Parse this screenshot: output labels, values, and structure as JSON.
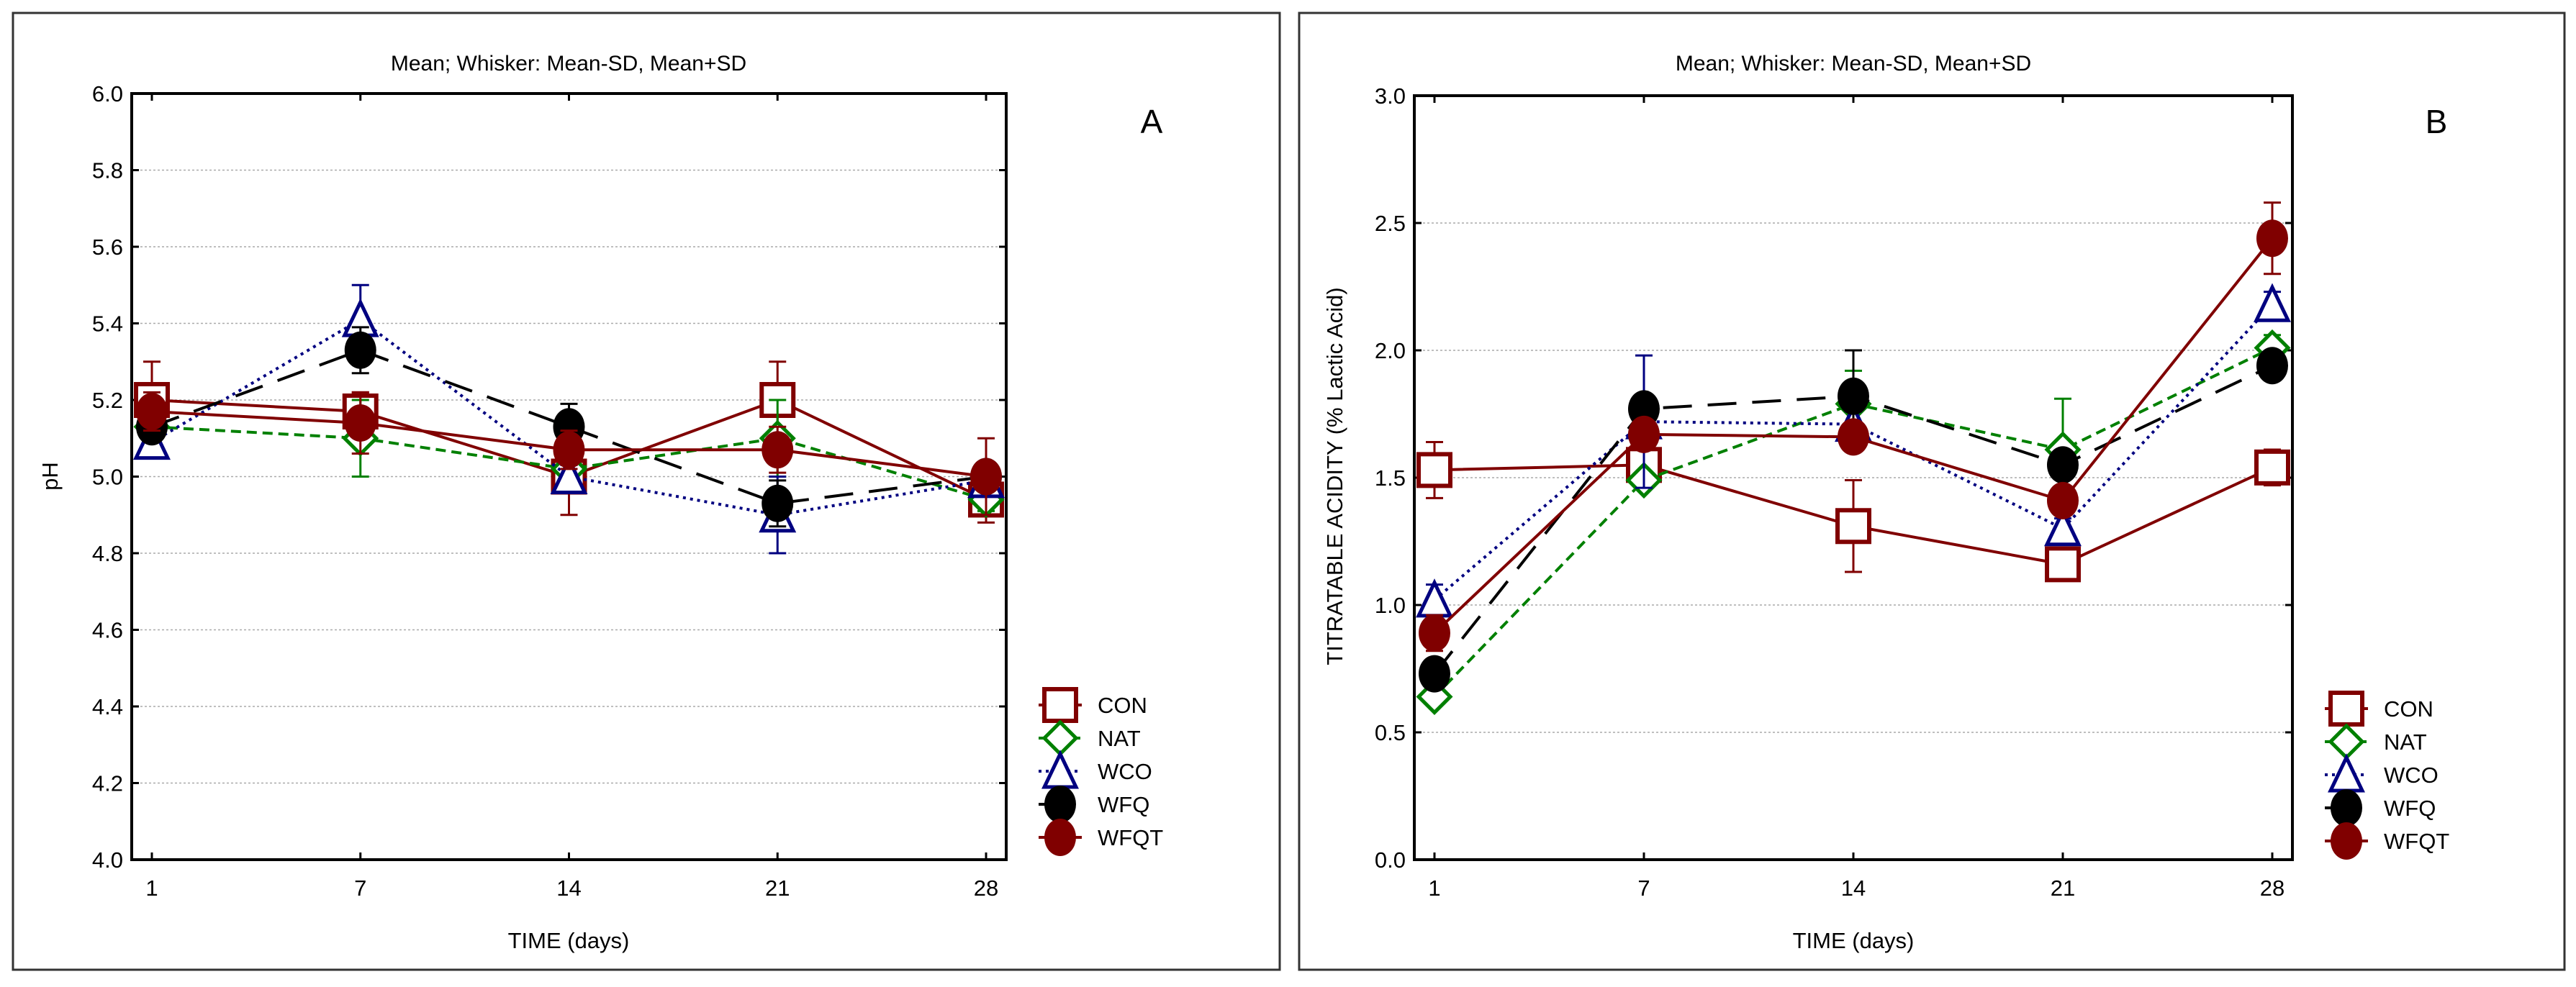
{
  "chart_data": [
    {
      "type": "line",
      "panel_label": "A",
      "title": "Mean;  Whisker: Mean-SD, Mean+SD",
      "xlabel": "TIME (days)",
      "ylabel": "pH",
      "categories": [
        "1",
        "7",
        "14",
        "21",
        "28"
      ],
      "ylim": [
        4.0,
        6.0
      ],
      "yticks": [
        "4.0",
        "4.2",
        "4.4",
        "4.6",
        "4.8",
        "5.0",
        "5.2",
        "5.4",
        "5.6",
        "5.8",
        "6.0"
      ],
      "grid": true,
      "legend_position": "bottom-right",
      "series": [
        {
          "name": "CON",
          "values": [
            5.2,
            5.17,
            5.0,
            5.2,
            4.94
          ],
          "sd": [
            0.1,
            0.05,
            0.1,
            0.1,
            0.06
          ],
          "color": "#800000",
          "marker": "square",
          "dash": "solid"
        },
        {
          "name": "NAT",
          "values": [
            5.13,
            5.1,
            5.02,
            5.1,
            4.94
          ],
          "sd": [
            0.03,
            0.1,
            0.03,
            0.1,
            0.03
          ],
          "color": "#008000",
          "marker": "diamond",
          "dash": "dashed"
        },
        {
          "name": "WCO",
          "values": [
            5.09,
            5.41,
            5.0,
            4.9,
            4.99
          ],
          "sd": [
            0.03,
            0.09,
            0.03,
            0.1,
            0.02
          ],
          "color": "#000080",
          "marker": "triangle",
          "dash": "dotted"
        },
        {
          "name": "WFQ",
          "values": [
            5.13,
            5.33,
            5.13,
            4.93,
            5.0
          ],
          "sd": [
            0.03,
            0.06,
            0.06,
            0.06,
            0.02
          ],
          "color": "#000000",
          "marker": "circle",
          "dash": "longdash"
        },
        {
          "name": "WFQT",
          "values": [
            5.17,
            5.14,
            5.07,
            5.07,
            5.0
          ],
          "sd": [
            0.05,
            0.08,
            0.05,
            0.06,
            0.1
          ],
          "color": "#800000",
          "marker": "filled-circle",
          "dash": "solid"
        }
      ]
    },
    {
      "type": "line",
      "panel_label": "B",
      "title": "Mean;  Whisker: Mean-SD, Mean+SD",
      "xlabel": "TIME (days)",
      "ylabel": "TITRATABLE ACIDITY (% Lactic Acid)",
      "categories": [
        "1",
        "7",
        "14",
        "21",
        "28"
      ],
      "ylim": [
        0.0,
        3.0
      ],
      "yticks": [
        "0.0",
        "0.5",
        "1.0",
        "1.5",
        "2.0",
        "2.5",
        "3.0"
      ],
      "grid": true,
      "legend_position": "bottom-right",
      "series": [
        {
          "name": "CON",
          "values": [
            1.53,
            1.55,
            1.31,
            1.16,
            1.54
          ],
          "sd": [
            0.11,
            0.03,
            0.18,
            0.02,
            0.07
          ],
          "color": "#800000",
          "marker": "square",
          "dash": "solid"
        },
        {
          "name": "NAT",
          "values": [
            0.64,
            1.49,
            1.79,
            1.61,
            2.01
          ],
          "sd": [
            0.03,
            0.03,
            0.13,
            0.2,
            0.05
          ],
          "color": "#008000",
          "marker": "diamond",
          "dash": "dashed"
        },
        {
          "name": "WCO",
          "values": [
            1.02,
            1.72,
            1.71,
            1.3,
            2.18
          ],
          "sd": [
            0.06,
            0.26,
            0.05,
            0.04,
            0.05
          ],
          "color": "#000080",
          "marker": "triangle",
          "dash": "dotted"
        },
        {
          "name": "WFQ",
          "values": [
            0.73,
            1.77,
            1.82,
            1.55,
            1.94
          ],
          "sd": [
            0.03,
            0.03,
            0.18,
            0.04,
            0.03
          ],
          "color": "#000000",
          "marker": "circle",
          "dash": "longdash"
        },
        {
          "name": "WFQT",
          "values": [
            0.89,
            1.67,
            1.66,
            1.41,
            2.44
          ],
          "sd": [
            0.07,
            0.04,
            0.04,
            0.05,
            0.14
          ],
          "color": "#800000",
          "marker": "filled-circle",
          "dash": "solid"
        }
      ]
    }
  ]
}
